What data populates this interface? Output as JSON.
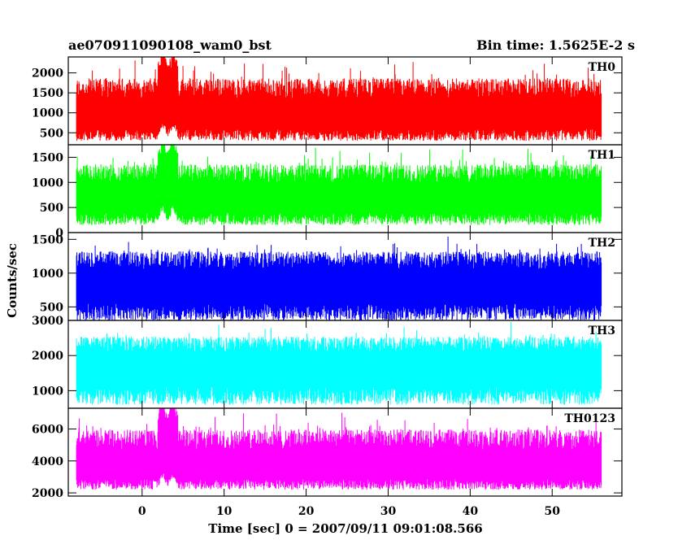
{
  "header": {
    "title": "ae070911090108_wam0_bst",
    "bin_time": "Bin time: 1.5625E-2 s"
  },
  "chart_data": {
    "type": "line",
    "xlabel": "Time [sec] 0 = 2007/09/11 09:01:08.566",
    "ylabel": "Counts/sec",
    "xlim": [
      -9,
      58.5
    ],
    "x_ticks": [
      0,
      10,
      20,
      30,
      40,
      50
    ],
    "x_start": -8,
    "x_end": 56,
    "panels": [
      {
        "name": "TH0",
        "color": "#ff0000",
        "ylim": [
          200,
          2400
        ],
        "yticks": [
          500,
          1000,
          1500,
          2000
        ],
        "approx_min": 300,
        "approx_median": 950,
        "approx_max": 2400,
        "spike_times": [
          2.5,
          3.8
        ],
        "spike_peak": 2400
      },
      {
        "name": "TH1",
        "color": "#00ff00",
        "ylim": [
          0,
          1750
        ],
        "yticks": [
          0,
          500,
          1000,
          1500
        ],
        "approx_min": 150,
        "approx_median": 700,
        "approx_max": 1750,
        "spike_times": [
          2.5,
          3.8
        ],
        "spike_peak": 1750
      },
      {
        "name": "TH2",
        "color": "#0000ff",
        "ylim": [
          300,
          1600
        ],
        "yticks": [
          500,
          1000,
          1500
        ],
        "approx_min": 300,
        "approx_median": 850,
        "approx_max": 1600,
        "spike_times": [],
        "spike_peak": 1600
      },
      {
        "name": "TH3",
        "color": "#00ffff",
        "ylim": [
          500,
          3000
        ],
        "yticks": [
          1000,
          2000,
          3000
        ],
        "approx_min": 600,
        "approx_median": 1750,
        "approx_max": 3000,
        "spike_times": [],
        "spike_peak": 3000
      },
      {
        "name": "TH0123",
        "color": "#ff00ff",
        "ylim": [
          1800,
          7300
        ],
        "yticks": [
          2000,
          4000,
          6000
        ],
        "approx_min": 2200,
        "approx_median": 3700,
        "approx_max": 7300,
        "spike_times": [
          2.5,
          3.8
        ],
        "spike_peak": 7300
      }
    ]
  }
}
